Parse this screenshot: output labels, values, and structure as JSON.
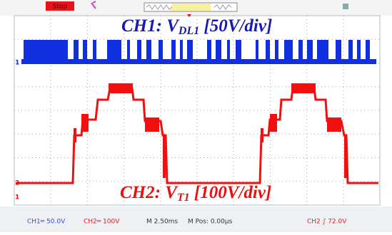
{
  "toolbar": {
    "run_state": "Stop"
  },
  "channel_labels": {
    "ch1": {
      "name": "CH1: ",
      "symbol": "V",
      "subscript": "DL1",
      "scale": " [50V/div]"
    },
    "ch2": {
      "name": "CH2: ",
      "symbol": "V",
      "subscript": "T1",
      "scale": " [100V/div]"
    }
  },
  "markers": {
    "ch1": "1",
    "ch2": "2",
    "trigger": "1"
  },
  "status_bar": {
    "ch1_scale": "CH1═ 50.0V",
    "ch2_scale": "CH2═ 100V",
    "timebase": "M 2.50ms",
    "position": "M Pos: 0.00µs",
    "trigger": "CH2 ∫ 72.0V"
  }
}
